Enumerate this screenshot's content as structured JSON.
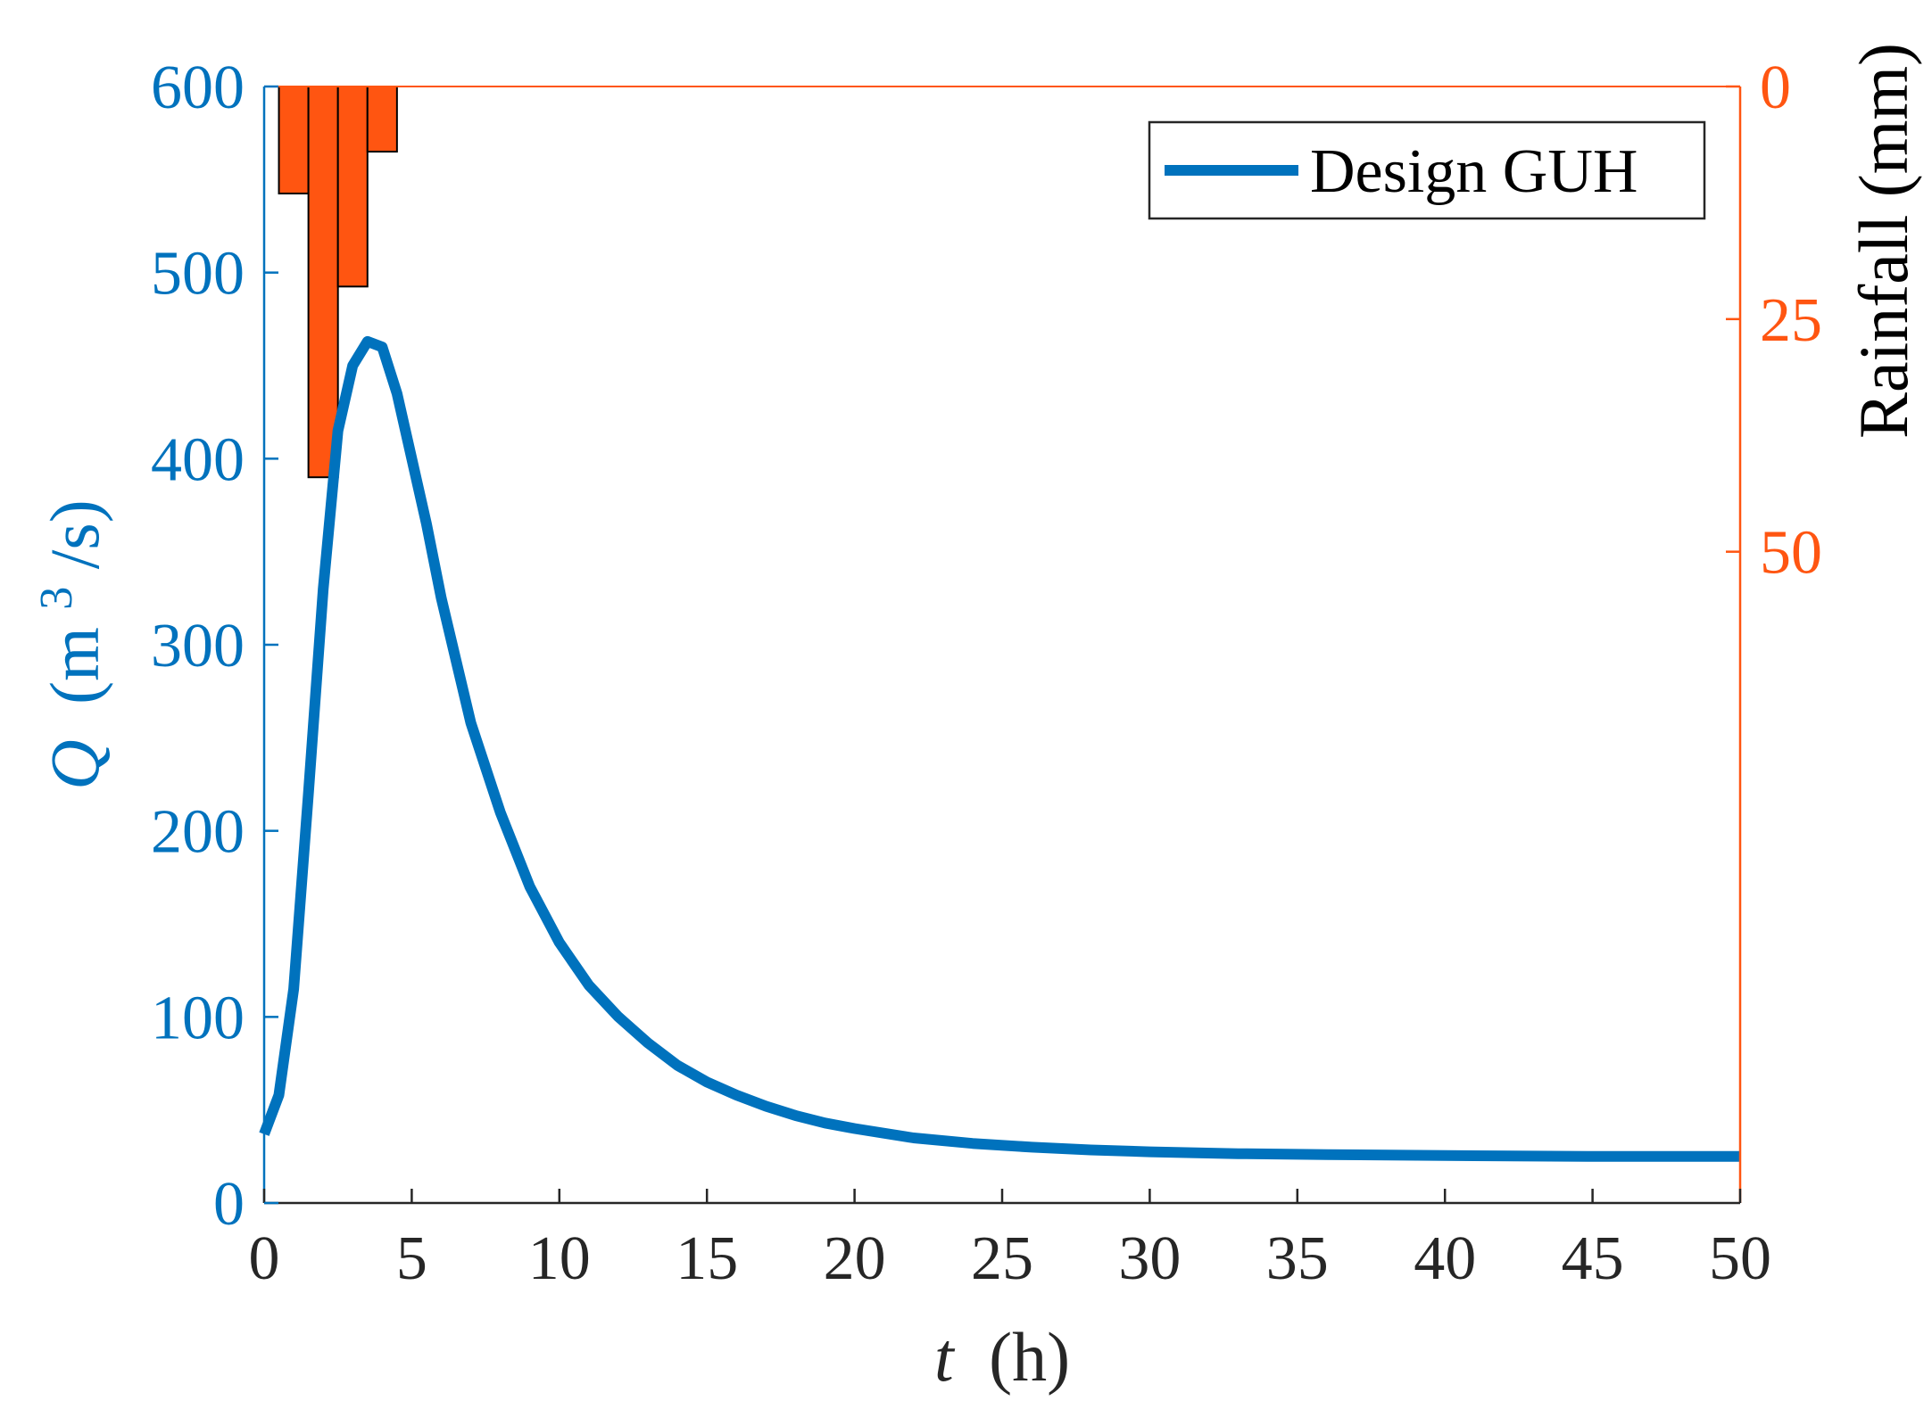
{
  "chart_data": {
    "type": "line",
    "xlabel": {
      "var": "t",
      "unit": "(h)"
    },
    "ylabel_left": {
      "var": "Q",
      "unit_pre": "(m",
      "unit_sup": "3",
      "unit_post": "/s)"
    },
    "ylabel_right": "Rainfall (mm)",
    "xlim": [
      0,
      50
    ],
    "ylim_left": [
      0,
      600
    ],
    "ylim_right": [
      0,
      120
    ],
    "right_axis_reversed": true,
    "x_ticks": [
      "0",
      "5",
      "10",
      "15",
      "20",
      "25",
      "30",
      "35",
      "40",
      "45",
      "50"
    ],
    "y_ticks_left": [
      "0",
      "100",
      "200",
      "300",
      "400",
      "500",
      "600"
    ],
    "y_ticks_right": [
      "0",
      "25",
      "50"
    ],
    "grid": false,
    "legend_position": "top-right",
    "series": [
      {
        "name": "Design GUH",
        "color": "#0072BD",
        "x": [
          0,
          0.5,
          1,
          1.5,
          2,
          2.5,
          3,
          3.5,
          4,
          4.5,
          5,
          5.5,
          6,
          7,
          8,
          9,
          10,
          11,
          12,
          13,
          14,
          15,
          16,
          17,
          18,
          19,
          20,
          22,
          24,
          26,
          28,
          30,
          33,
          36,
          40,
          45,
          50
        ],
        "y": [
          37,
          58,
          115,
          220,
          330,
          415,
          450,
          463,
          460,
          435,
          400,
          365,
          325,
          258,
          210,
          170,
          140,
          117,
          100,
          86,
          74,
          65,
          58,
          52,
          47,
          43,
          40,
          35,
          32,
          30,
          28.5,
          27.5,
          26.5,
          26,
          25.5,
          25,
          25
        ]
      }
    ],
    "bars": {
      "name": "Rainfall",
      "color": "#FF5511",
      "width": 1,
      "x_centers": [
        1,
        2,
        3,
        4
      ],
      "values": [
        11.5,
        42,
        21.5,
        7
      ]
    }
  }
}
